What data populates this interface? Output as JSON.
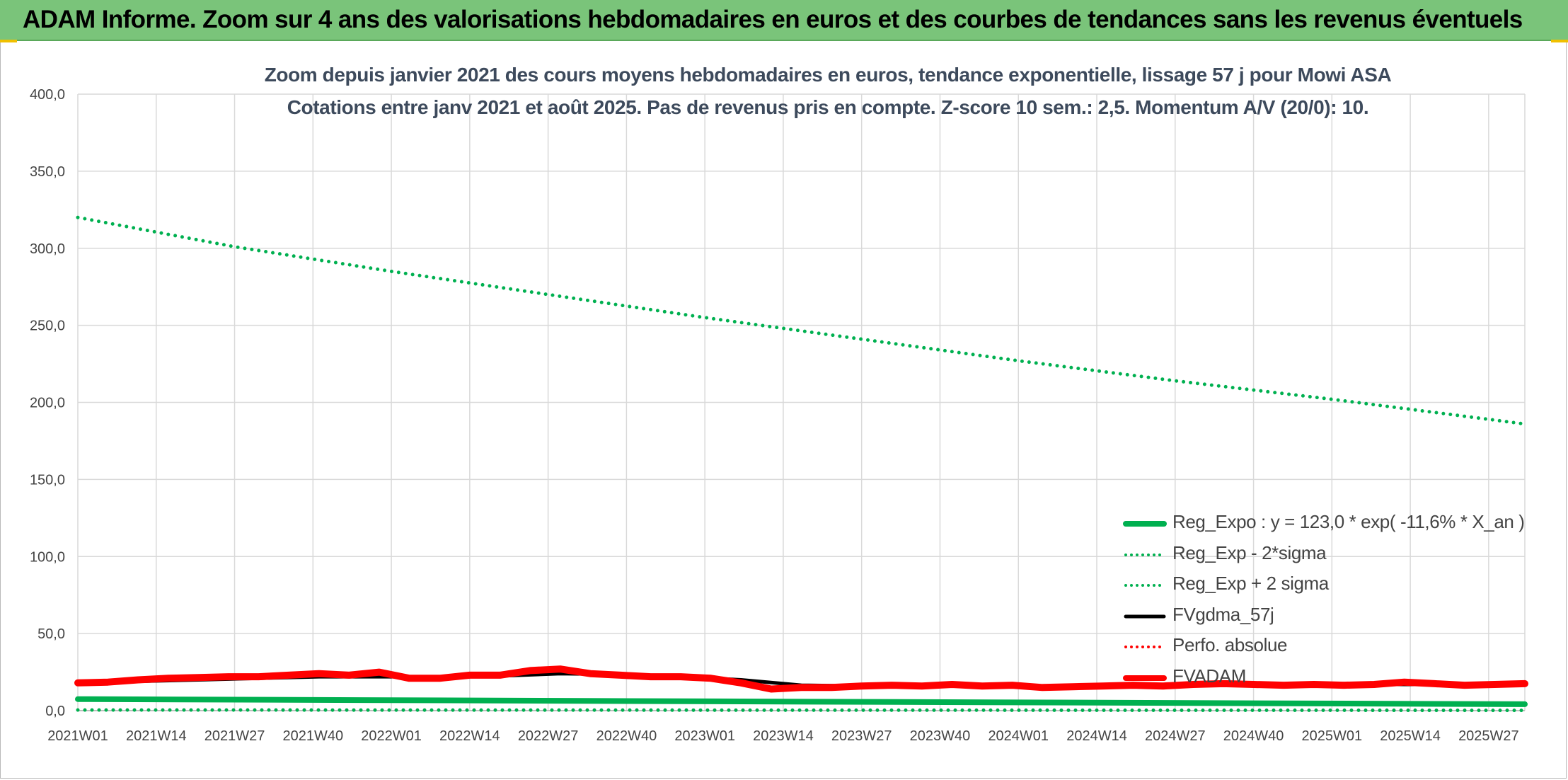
{
  "banner": {
    "title": "ADAM Informe. Zoom sur 4 ans des valorisations hebdomadaires en euros et des courbes de tendances sans les revenus éventuels"
  },
  "colors": {
    "banner_bg": "#7ac47a",
    "reg_expo": "#00b050",
    "fvgdma": "#000000",
    "perfo": "#ff0000",
    "fvadam": "#ff0000"
  },
  "chart_data": {
    "type": "line",
    "title": "Zoom depuis janvier 2021 des cours moyens hebdomadaires en euros, tendance exponentielle, lissage 57 j pour Mowi ASA",
    "subtitle": "Cotations entre janv 2021 et août 2025. Pas de revenus pris en compte. Z-score 10 sem.: 2,5. Momentum A/V (20/0): 10.",
    "xlabel": "",
    "ylabel": "",
    "ylim": [
      0,
      400
    ],
    "y_ticks": [
      "0,0",
      "50,0",
      "100,0",
      "150,0",
      "200,0",
      "250,0",
      "300,0",
      "350,0",
      "400,0"
    ],
    "x_tick_labels": [
      "2021W01",
      "2021W14",
      "2021W27",
      "2021W40",
      "2022W01",
      "2022W14",
      "2022W27",
      "2022W40",
      "2023W01",
      "2023W14",
      "2023W27",
      "2023W40",
      "2024W01",
      "2024W14",
      "2024W27",
      "2024W40",
      "2025W01",
      "2025W14",
      "2025W27"
    ],
    "x_range_weeks": [
      0,
      240
    ],
    "grid": true,
    "legend_position": "bottom-right",
    "series": [
      {
        "name": "Reg_Expo : y = 123,0 * exp( -11,6% *  X_an )",
        "style": "solid-thick",
        "color": "#00b050",
        "x": [
          0,
          240
        ],
        "y": [
          7.5,
          4.2
        ]
      },
      {
        "name": "Reg_Exp - 2*sigma",
        "style": "dotted",
        "color": "#00b050",
        "x": [
          0,
          240
        ],
        "y": [
          0.4,
          0.2
        ]
      },
      {
        "name": "Reg_Exp + 2 sigma",
        "style": "dotted",
        "color": "#00b050",
        "x": [
          0,
          26,
          52,
          78,
          104,
          130,
          156,
          182,
          208,
          240
        ],
        "y": [
          320,
          301,
          285,
          270,
          255,
          241,
          227,
          214,
          202,
          186
        ]
      },
      {
        "name": "FVgdma_57j",
        "style": "solid",
        "color": "#000000",
        "x": [
          0,
          10,
          20,
          30,
          40,
          50,
          60,
          70,
          80,
          90,
          100,
          110,
          120,
          130,
          140,
          150,
          160,
          170,
          180,
          190,
          200,
          210,
          220,
          230,
          240
        ],
        "y": [
          18,
          19,
          20,
          21,
          22,
          22,
          22,
          22.5,
          24,
          23.5,
          22,
          20,
          16.5,
          16,
          16,
          16,
          16,
          16.5,
          16.5,
          17,
          17,
          17.5,
          17,
          17,
          17
        ]
      },
      {
        "name": "Perfo. absolue",
        "style": "dotted",
        "color": "#ff0000",
        "x": [],
        "y": []
      },
      {
        "name": "FVADAM",
        "style": "solid-thick",
        "color": "#ff0000",
        "x": [
          0,
          5,
          10,
          15,
          20,
          25,
          30,
          35,
          40,
          45,
          50,
          55,
          60,
          65,
          70,
          75,
          80,
          85,
          90,
          95,
          100,
          105,
          110,
          115,
          120,
          125,
          130,
          135,
          140,
          145,
          150,
          155,
          160,
          165,
          170,
          175,
          180,
          185,
          190,
          195,
          200,
          205,
          210,
          215,
          220,
          225,
          230,
          235,
          240
        ],
        "y": [
          18,
          18.5,
          20,
          21,
          21.5,
          22,
          22,
          23,
          24,
          23,
          25,
          21,
          21,
          23,
          23,
          26,
          27,
          24,
          23,
          22,
          22,
          21,
          18,
          14,
          15,
          15,
          16,
          16.5,
          16,
          17,
          16,
          16.5,
          15,
          15.5,
          16,
          16.5,
          16,
          17,
          17.5,
          17,
          16.5,
          17,
          16.5,
          17,
          18.5,
          17.5,
          16.5,
          17,
          17.5
        ]
      }
    ]
  }
}
